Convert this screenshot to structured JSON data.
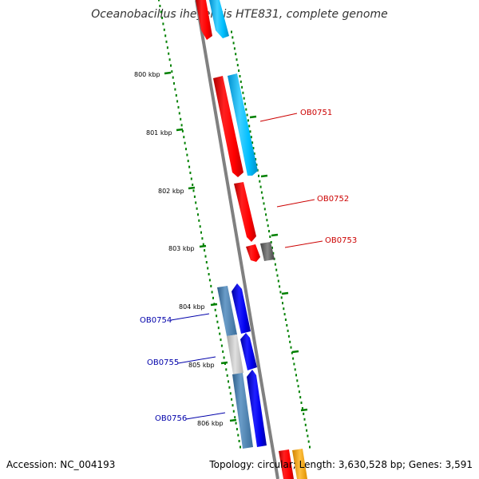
{
  "header": {
    "title": "Oceanobacillus iheyensis HTE831, complete genome"
  },
  "footer": {
    "accession": "Accession: NC_004193",
    "topology": "Topology: circular; Length: 3,630,528 bp; Genes: 3,591"
  },
  "ticks": [
    {
      "label": "800 kbp"
    },
    {
      "label": "801 kbp"
    },
    {
      "label": "802 kbp"
    },
    {
      "label": "803 kbp"
    },
    {
      "label": "804 kbp"
    },
    {
      "label": "805 kbp"
    },
    {
      "label": "806 kbp"
    }
  ],
  "gene_labels": [
    {
      "label": "OB0751"
    },
    {
      "label": "OB0752"
    },
    {
      "label": "OB0753"
    },
    {
      "label": "OB0754"
    },
    {
      "label": "OB0755"
    },
    {
      "label": "OB0756"
    }
  ],
  "colors": {
    "forward_cds": "#ff0000",
    "reverse_cds": "#0000ee",
    "forward_feature": "#00bfff",
    "reverse_feature": "#4682b4",
    "backbone": "#808080",
    "ruler": "#008000",
    "grey_feature": "#666666",
    "light_grey_feature": "#c0c0c0",
    "orange_feature": "#ffa500"
  }
}
